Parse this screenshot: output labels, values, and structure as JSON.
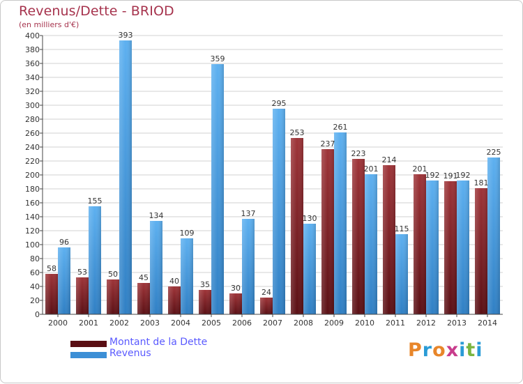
{
  "title": "Revenus/Dette - BRIOD",
  "subtitle": "(en milliers d'€)",
  "legend": {
    "debt_label": "Montant de la Dette",
    "revenue_label": "Revenus"
  },
  "logo": {
    "text": "Proxiti",
    "letter_colors": [
      "#e8862a",
      "#2a9bd6",
      "#e8862a",
      "#c83c8c",
      "#2a9bd6",
      "#7ab540",
      "#2a9bd6"
    ]
  },
  "colors": {
    "debt": "#7a1e24",
    "revenue": "#4aa3e8",
    "grid": "#d0d0d0",
    "axis": "#444444",
    "title": "#a6334d",
    "legend_text": "#5a5aff"
  },
  "chart_data": {
    "type": "bar",
    "categories": [
      "2000",
      "2001",
      "2002",
      "2003",
      "2004",
      "2005",
      "2006",
      "2007",
      "2008",
      "2009",
      "2010",
      "2011",
      "2012",
      "2013",
      "2014"
    ],
    "series": [
      {
        "name": "Montant de la Dette",
        "values": [
          58,
          53,
          50,
          45,
          40,
          35,
          30,
          24,
          253,
          237,
          223,
          214,
          201,
          191,
          181
        ]
      },
      {
        "name": "Revenus",
        "values": [
          96,
          155,
          393,
          134,
          109,
          359,
          137,
          295,
          130,
          261,
          201,
          115,
          192,
          192,
          225
        ]
      }
    ],
    "ylim": [
      0,
      400
    ],
    "ytick_step": 20,
    "grid": true,
    "legend_position": "bottom-left"
  }
}
